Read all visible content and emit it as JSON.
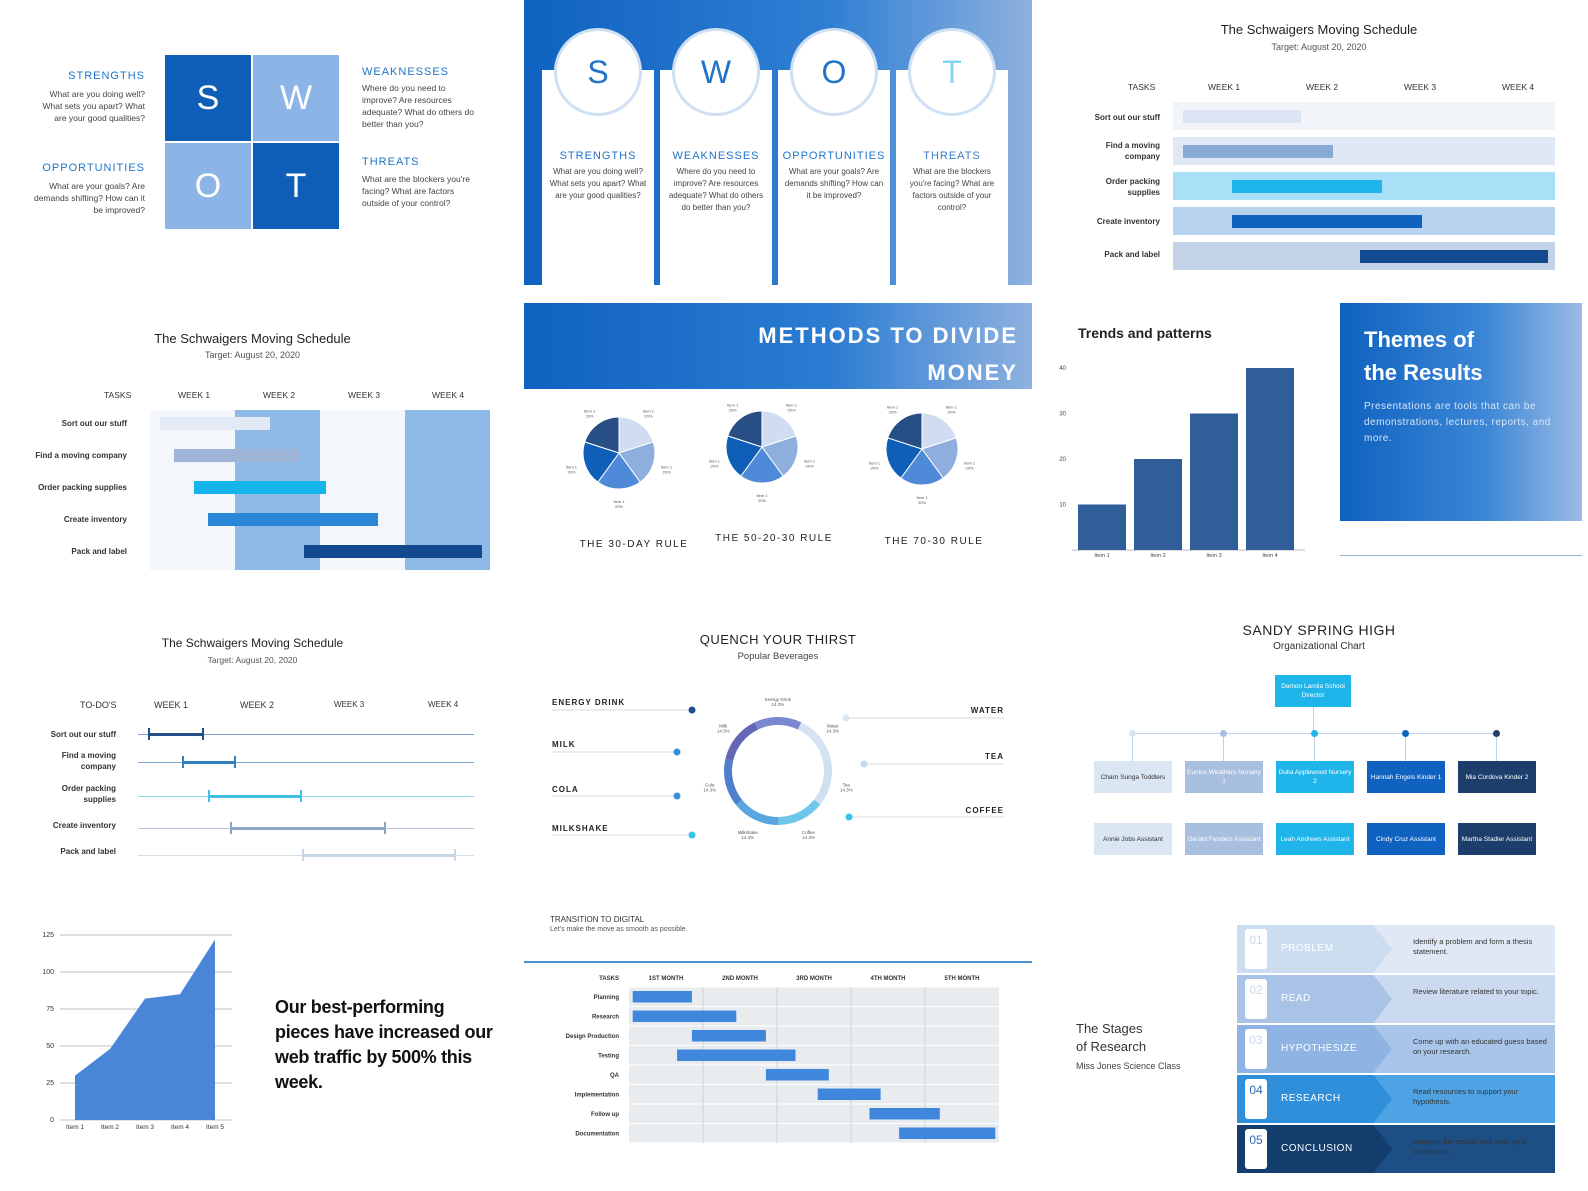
{
  "swot1": {
    "s": "S",
    "w": "W",
    "o": "O",
    "t": "T",
    "strengths": "STRENGTHS",
    "strengths_text": "What are you doing well? What sets you apart? What are your good qualities?",
    "weaknesses": "WEAKNESSES",
    "weaknesses_text": "Where do you need to improve? Are resources adequate? What do others do better than you?",
    "opportunities": "OPPORTUNITIES",
    "opportunities_text": "What are your goals? Are demands shifting? How can it be improved?",
    "threats": "THREATS",
    "threats_text": "What are the blockers you're facing? What are factors outside of your control?"
  },
  "swot2": {
    "cols": [
      {
        "letter": "S",
        "title": "STRENGTHS",
        "text": "What are you doing well? What sets you apart? What are your good qualities?"
      },
      {
        "letter": "W",
        "title": "WEAKNESSES",
        "text": "Where do you need to improve? Are resources adequate? What do others do better than you?"
      },
      {
        "letter": "O",
        "title": "OPPORTUNITIES",
        "text": "What are your goals? Are demands shifting? How can it be improved?"
      },
      {
        "letter": "T",
        "title": "THREATS",
        "text": "What are the blockers you're facing? What are factors outside of your control?"
      }
    ]
  },
  "sched": {
    "title": "The Schwaigers Moving Schedule",
    "target": "Target: August 20, 2020",
    "tasks_label": "TASKS",
    "todos_label": "TO-DO'S",
    "weeks": [
      "WEEK 1",
      "WEEK 2",
      "WEEK 3",
      "WEEK 4"
    ],
    "tasks": [
      "Sort out our stuff",
      "Find a moving company",
      "Order packing supplies",
      "Create inventory",
      "Pack and label"
    ],
    "tasks_short_a": [
      "Find a moving",
      "company"
    ],
    "tasks_short_b": [
      "Order packing",
      "supplies"
    ]
  },
  "money": {
    "title_line1": "METHODS TO DIVIDE",
    "title_line2": "MONEY",
    "rules": [
      "THE 30-DAY RULE",
      "THE 50-20-30 RULE",
      "THE 70-30 RULE"
    ],
    "slice_label": "Item 1",
    "slice_pct": "20%"
  },
  "trends": {
    "title": "Trends and patterns",
    "y_ticks": [
      "40",
      "30",
      "20",
      "10"
    ],
    "items": [
      "Item 1",
      "Item 2",
      "Item 3",
      "Item 4"
    ]
  },
  "themes": {
    "title_line1": "Themes of",
    "title_line2": "the Results",
    "text": "Presentations are tools that can be demonstrations, lectures, reports, and more."
  },
  "thirst": {
    "title": "QUENCH YOUR THIRST",
    "subtitle": "Popular Beverages",
    "left": [
      "ENERGY DRINK",
      "MILK",
      "COLA",
      "MILKSHAKE"
    ],
    "right": [
      "WATER",
      "TEA",
      "COFFEE"
    ],
    "ring": [
      {
        "label": "Energy Drink",
        "pct": "14.3%"
      },
      {
        "label": "Water",
        "pct": "14.3%"
      },
      {
        "label": "Tea",
        "pct": "14.3%"
      },
      {
        "label": "Coffee",
        "pct": "14.3%"
      },
      {
        "label": "Milkshake",
        "pct": "14.3%"
      },
      {
        "label": "Cola",
        "pct": "14.3%"
      },
      {
        "label": "Milk",
        "pct": "14.3%"
      }
    ]
  },
  "org": {
    "title": "SANDY SPRING HIGH",
    "subtitle": "Organizational Chart",
    "top": "Damon Lamila School Director",
    "row1": [
      "Charn Sunga Toddlers",
      "Eunice Weathers Nursery 1",
      "Dulia Applewood Nursery 2",
      "Hannah Engels Kinder 1",
      "Mia Cordova Kinder 2"
    ],
    "row2": [
      "Annie Jobs Assistant",
      "Gerald Fenders Assistant",
      "Leah Andrews Assistant",
      "Cindy Cruz Assistant",
      "Martha Stadler Assistant"
    ]
  },
  "traffic": {
    "y_ticks": [
      "125",
      "100",
      "75",
      "50",
      "25",
      "0"
    ],
    "items": [
      "Item 1",
      "Item 2",
      "Item 3",
      "Item 4",
      "Item 5"
    ],
    "headline": "Our best-performing pieces have increased our web traffic by 500% this week."
  },
  "digital": {
    "title": "TRANSITION TO DIGITAL",
    "subtitle": "Let's make the move as smooth as possible.",
    "tasks_label": "TASKS",
    "months": [
      "1ST MONTH",
      "2ND MONTH",
      "3RD MONTH",
      "4TH MONTH",
      "5TH MONTH"
    ],
    "tasks": [
      "Planning",
      "Research",
      "Design Production",
      "Testing",
      "QA",
      "Implementation",
      "Follow up",
      "Documentation"
    ]
  },
  "research": {
    "title_line1": "The Stages",
    "title_line2": "of Research",
    "subtitle": "Miss Jones Science Class",
    "stages": [
      {
        "num": "01",
        "name": "PROBLEM",
        "text": "Identify a problem and form a thesis statement."
      },
      {
        "num": "02",
        "name": "READ",
        "text": "Review literature related to your topic."
      },
      {
        "num": "03",
        "name": "HYPOTHESIZE",
        "text": "Come up with an educated guess based on your research."
      },
      {
        "num": "04",
        "name": "RESEARCH",
        "text": "Read resources to support your hypothesis."
      },
      {
        "num": "05",
        "name": "CONCLUSION",
        "text": "Interpret the results and write your conclusion."
      }
    ]
  }
}
